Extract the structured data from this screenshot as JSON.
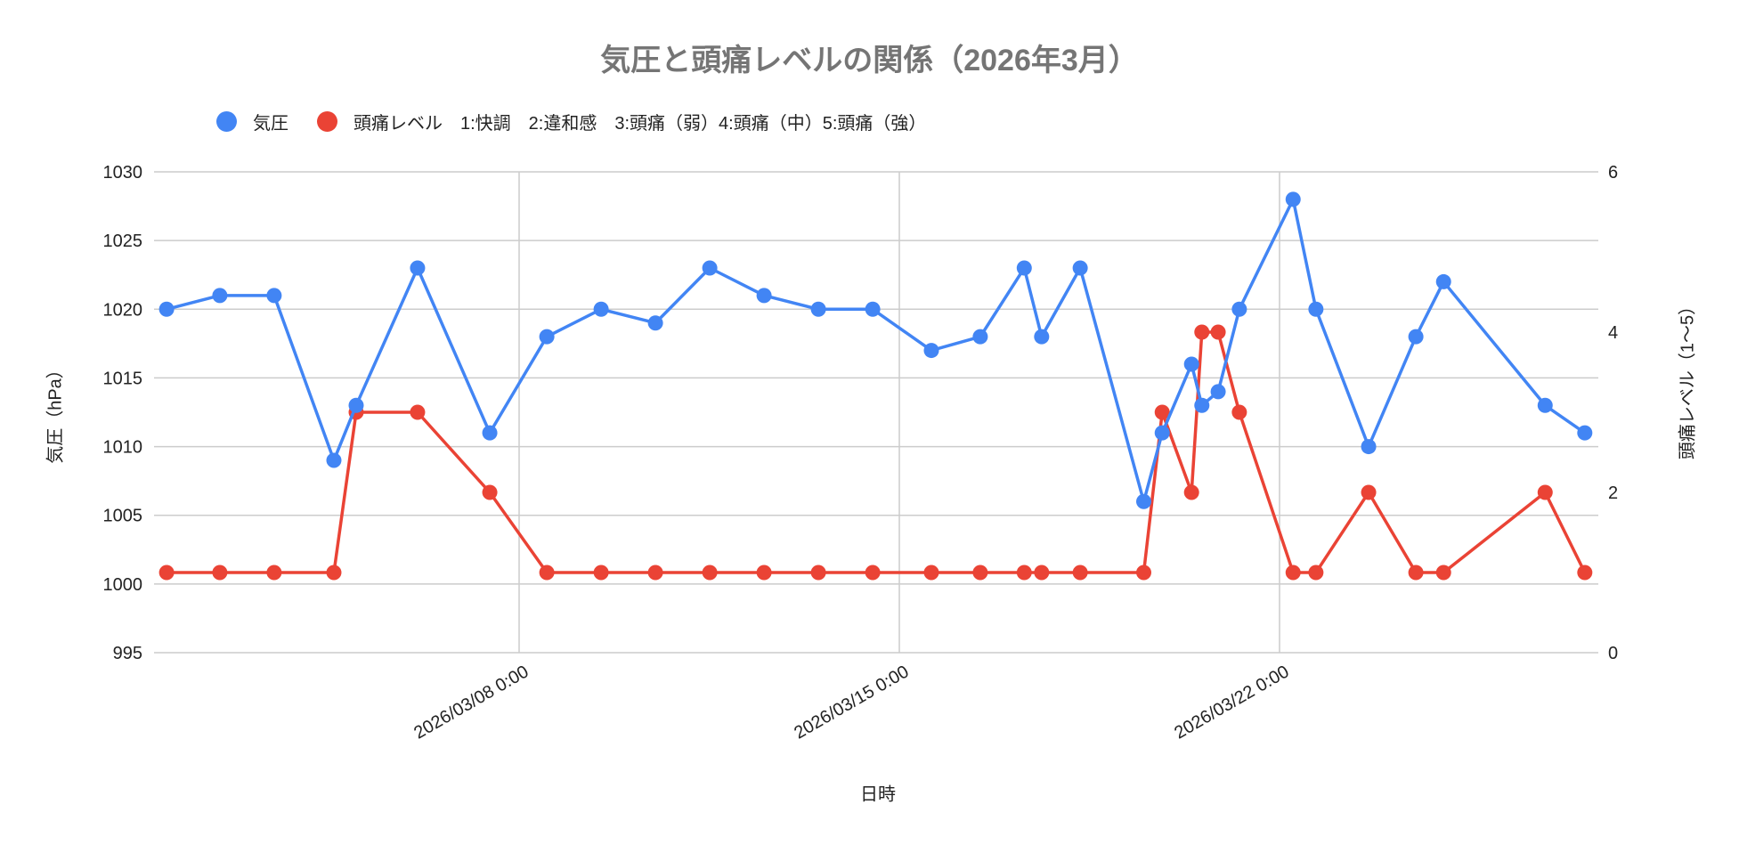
{
  "chart": {
    "title": "気圧と頭痛レベルの関係（2026年3月）",
    "legend": [
      {
        "label": "気圧",
        "color": "#4285f4"
      },
      {
        "label": "頭痛レベル　1:快調　2:違和感　3:頭痛（弱）4:頭痛（中）5:頭痛（強）",
        "color": "#ea4335"
      }
    ],
    "x_axis_title": "日時",
    "left_axis_title": "気圧（hPa）",
    "right_axis_title": "頭痛レベル（1〜5）"
  },
  "chart_data": {
    "type": "line",
    "title": "気圧と頭痛レベルの関係（2026年3月）",
    "xlabel": "日時",
    "ylabel": "気圧（hPa）",
    "y2label": "頭痛レベル（1〜5）",
    "x_unit": "days since 2026/03/01 0:00",
    "x_range": [
      0.28,
      26.9
    ],
    "x_ticks": [
      {
        "day": 7,
        "label": "2026/03/08 0:00"
      },
      {
        "day": 14,
        "label": "2026/03/15 0:00"
      },
      {
        "day": 21,
        "label": "2026/03/22 0:00"
      }
    ],
    "ylim": [
      995,
      1030
    ],
    "y_ticks": [
      995,
      1000,
      1005,
      1010,
      1015,
      1020,
      1025,
      1030
    ],
    "y2lim": [
      0,
      6
    ],
    "y2_ticks": [
      0,
      2,
      4,
      6
    ],
    "grid": true,
    "legend_position": "top",
    "x": [
      0.51,
      1.49,
      2.49,
      3.59,
      4.0,
      5.13,
      6.46,
      7.51,
      8.51,
      9.51,
      10.51,
      11.51,
      12.51,
      13.51,
      14.59,
      15.49,
      16.3,
      16.62,
      17.33,
      18.5,
      18.84,
      19.38,
      19.57,
      19.87,
      20.26,
      21.25,
      21.67,
      22.64,
      23.51,
      24.02,
      25.89,
      26.62
    ],
    "series": [
      {
        "name": "気圧",
        "axis": "left",
        "color": "#4285f4",
        "values": [
          1020,
          1021,
          1021,
          1009,
          1013,
          1023,
          1011,
          1018,
          1020,
          1019,
          1023,
          1021,
          1020,
          1020,
          1017,
          1018,
          1023,
          1018,
          1023,
          1006,
          1011,
          1016,
          1013,
          1014,
          1020,
          1028,
          1020,
          1010,
          1018,
          1022,
          1013,
          1011
        ]
      },
      {
        "name": "頭痛レベル　1:快調　2:違和感　3:頭痛（弱）4:頭痛（中）5:頭痛（強）",
        "axis": "right",
        "color": "#ea4335",
        "values": [
          1,
          1,
          1,
          1,
          3,
          3,
          2,
          1,
          1,
          1,
          1,
          1,
          1,
          1,
          1,
          1,
          1,
          1,
          1,
          1,
          3,
          2,
          4,
          4,
          3,
          1,
          1,
          2,
          1,
          1,
          2,
          1
        ]
      }
    ]
  }
}
